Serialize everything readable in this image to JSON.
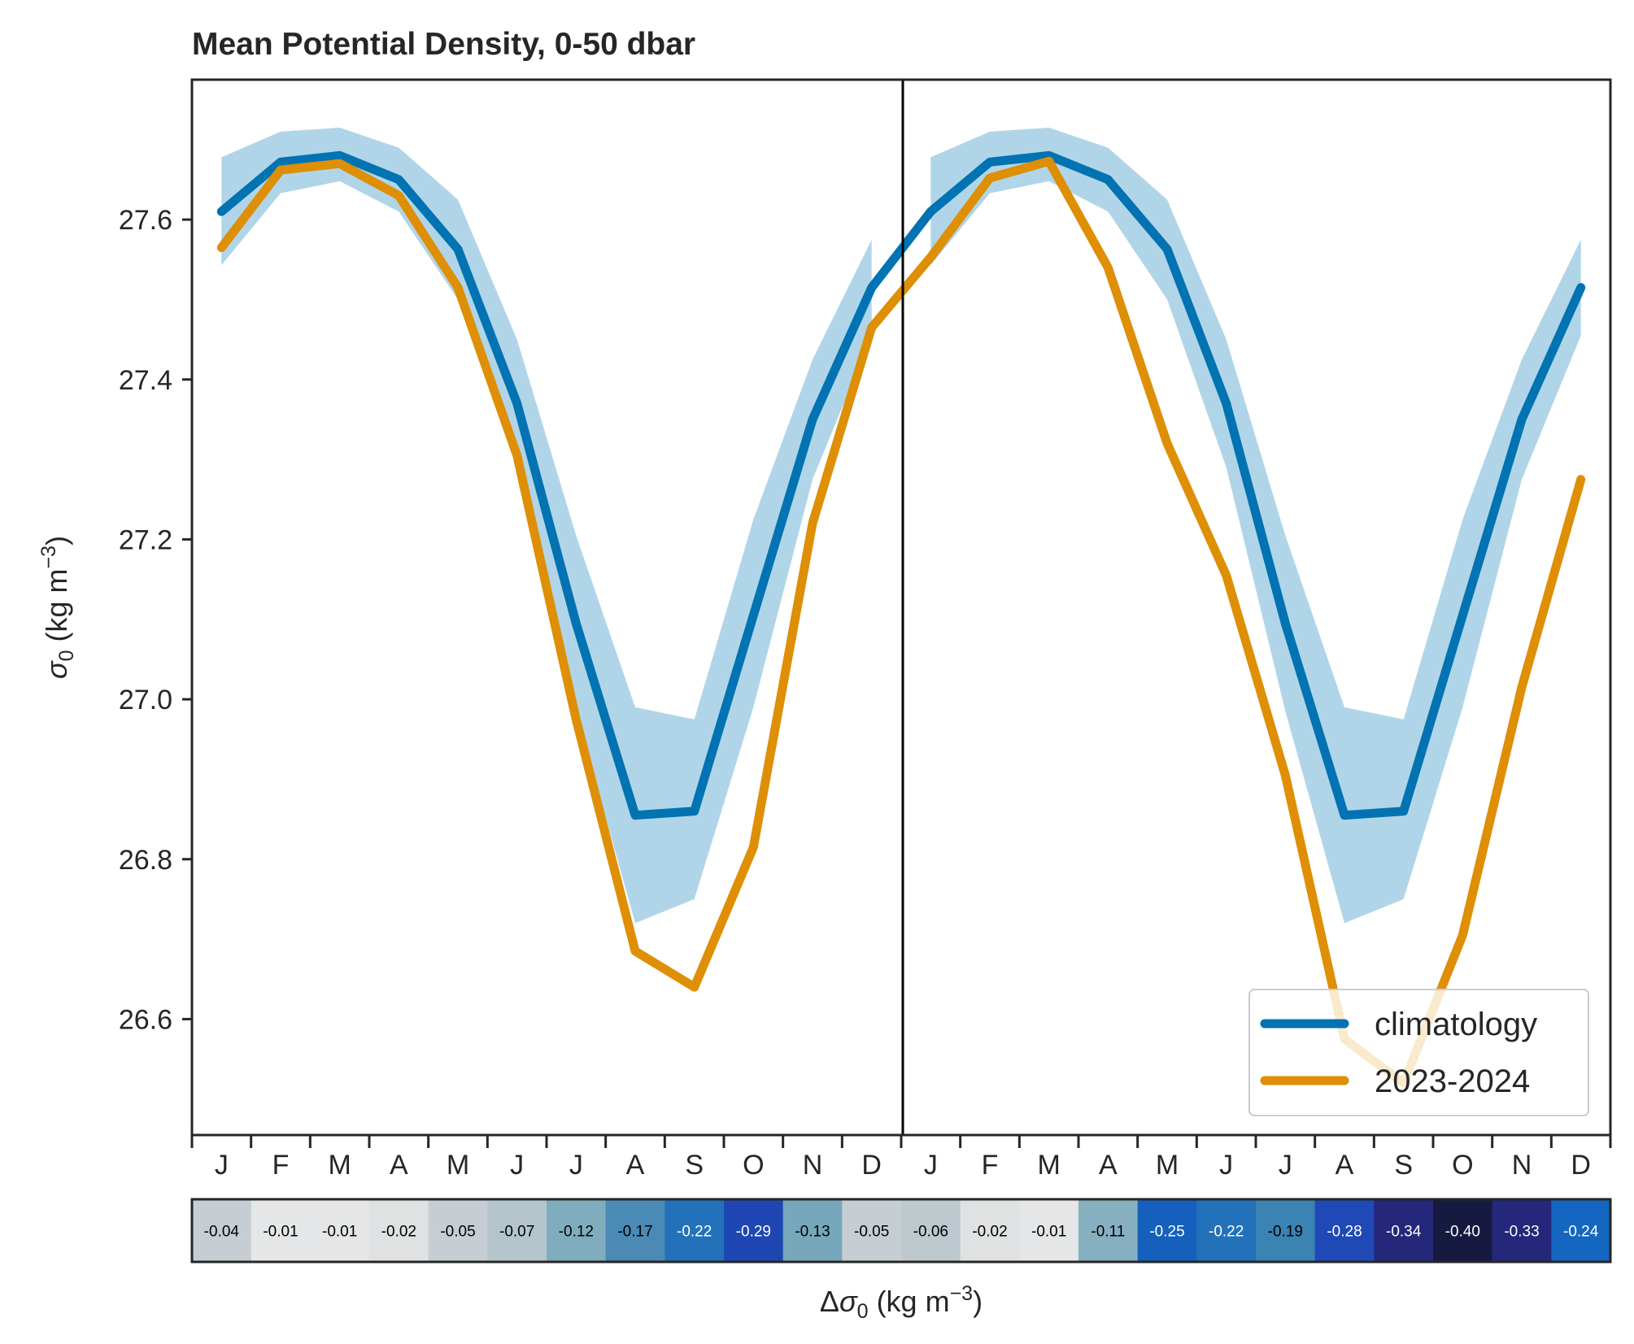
{
  "chart_data": {
    "type": "line",
    "title": "Mean Potential Density, 0-50 dbar",
    "ylabel": "σ0 (kg m−3)",
    "xlabel": "",
    "ylim": [
      26.455,
      27.775
    ],
    "yticks": [
      26.6,
      26.8,
      27.0,
      27.2,
      27.4,
      27.6
    ],
    "ytick_labels": [
      "26.6",
      "26.8",
      "27.0",
      "27.2",
      "27.4",
      "27.6"
    ],
    "categories": [
      "J",
      "F",
      "M",
      "A",
      "M",
      "J",
      "J",
      "A",
      "S",
      "O",
      "N",
      "D",
      "J",
      "F",
      "M",
      "A",
      "M",
      "J",
      "J",
      "A",
      "S",
      "O",
      "N",
      "D"
    ],
    "year_divider_after_index": 11,
    "series": [
      {
        "name": "climatology",
        "color": "#0173b2",
        "values": [
          27.61,
          27.672,
          27.68,
          27.65,
          27.563,
          27.37,
          27.095,
          26.855,
          26.86,
          27.105,
          27.35,
          27.515,
          27.61,
          27.672,
          27.68,
          27.65,
          27.563,
          27.37,
          27.095,
          26.855,
          26.86,
          27.105,
          27.35,
          27.515
        ],
        "band_upper": [
          27.678,
          27.71,
          27.715,
          27.69,
          27.625,
          27.45,
          27.205,
          26.99,
          26.975,
          27.225,
          27.425,
          27.575,
          27.678,
          27.71,
          27.715,
          27.69,
          27.625,
          27.45,
          27.205,
          26.99,
          26.975,
          27.225,
          27.425,
          27.575
        ],
        "band_lower": [
          27.543,
          27.633,
          27.648,
          27.61,
          27.5,
          27.29,
          26.985,
          26.72,
          26.75,
          26.99,
          27.275,
          27.455,
          27.543,
          27.633,
          27.648,
          27.61,
          27.5,
          27.29,
          26.985,
          26.72,
          26.75,
          26.99,
          27.275,
          27.455
        ],
        "band_color": "#b1d5e8"
      },
      {
        "name": "2023-2024",
        "color": "#de8f05",
        "values": [
          27.565,
          27.662,
          27.67,
          27.63,
          27.515,
          27.305,
          26.975,
          26.685,
          26.64,
          26.815,
          27.22,
          27.465,
          27.553,
          27.652,
          27.673,
          27.54,
          27.32,
          27.155,
          26.905,
          26.575,
          26.52,
          26.705,
          27.015,
          27.275
        ]
      }
    ],
    "legend": {
      "placement": "lower-right",
      "entries": [
        "climatology",
        "2023-2024"
      ]
    },
    "anomaly_strip": {
      "label": "Δσ0 (kg m−3)",
      "values": [
        "-0.04",
        "-0.01",
        "-0.01",
        "-0.02",
        "-0.05",
        "-0.07",
        "-0.12",
        "-0.17",
        "-0.22",
        "-0.29",
        "-0.13",
        "-0.05",
        "-0.06",
        "-0.02",
        "-0.01",
        "-0.11",
        "-0.25",
        "-0.22",
        "-0.19",
        "-0.28",
        "-0.34",
        "-0.40",
        "-0.33",
        "-0.24"
      ],
      "colors": [
        "#c6ced3",
        "#e5e6e7",
        "#e5e6e7",
        "#dfe1e2",
        "#c6ced3",
        "#b4c6cc",
        "#7fadbd",
        "#4a8ab4",
        "#2372b9",
        "#1f47b3",
        "#76a7ba",
        "#c6ced3",
        "#bdc9ce",
        "#dfe1e2",
        "#e5e6e7",
        "#86b0bf",
        "#1560bc",
        "#2372b9",
        "#3a83b2",
        "#1f49b6",
        "#25287a",
        "#171a40",
        "#25287a",
        "#1466c0"
      ],
      "text_colors": [
        "#000000",
        "#000000",
        "#000000",
        "#000000",
        "#000000",
        "#000000",
        "#000000",
        "#000000",
        "#ffffff",
        "#ffffff",
        "#000000",
        "#000000",
        "#000000",
        "#000000",
        "#000000",
        "#000000",
        "#ffffff",
        "#ffffff",
        "#000000",
        "#ffffff",
        "#ffffff",
        "#ffffff",
        "#ffffff",
        "#ffffff"
      ]
    },
    "grid": false
  }
}
